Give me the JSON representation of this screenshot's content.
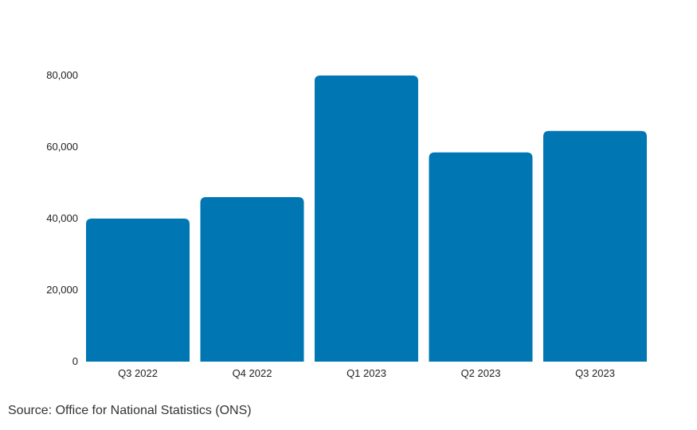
{
  "colors": {
    "bar": "#0077B3",
    "axis_text": "#222222",
    "background": "#ffffff"
  },
  "chart_data": {
    "type": "bar",
    "title": "",
    "xlabel": "",
    "ylabel": "",
    "categories": [
      "Q3 2022",
      "Q4 2022",
      "Q1 2023",
      "Q2 2023",
      "Q3 2023"
    ],
    "values": [
      40000,
      46000,
      80000,
      58500,
      64500
    ],
    "ylim": [
      0,
      80000
    ],
    "y_ticks": [
      0,
      20000,
      40000,
      60000,
      80000
    ],
    "y_tick_labels": [
      "0",
      "20,000",
      "40,000",
      "60,000",
      "80,000"
    ],
    "grid": false,
    "legend": "none"
  },
  "footer": {
    "source": "Source: Office for National Statistics (ONS)"
  }
}
